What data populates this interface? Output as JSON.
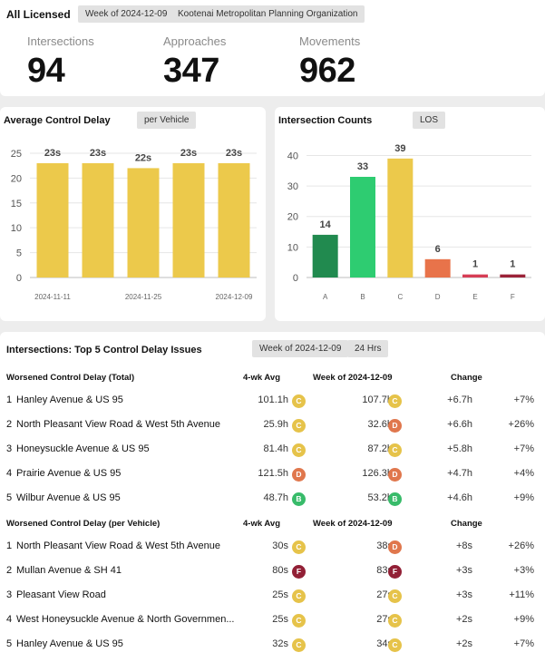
{
  "header": {
    "title": "All Licensed",
    "week_chip": "Week of 2024-12-09",
    "org_chip": "Kootenai Metropolitan Planning Organization"
  },
  "stats": [
    {
      "label": "Intersections",
      "value": "94"
    },
    {
      "label": "Approaches",
      "value": "347"
    },
    {
      "label": "Movements",
      "value": "962"
    }
  ],
  "colors": {
    "yellow": "#ecc94b",
    "green_dark": "#218a4f",
    "green": "#2ecc71",
    "orange": "#e8734a",
    "red": "#d63d55",
    "maroon": "#9b2338",
    "badge_C": "#e6c34a",
    "badge_D": "#e0774d",
    "badge_B": "#38bb6a",
    "badge_F": "#922036"
  },
  "delay_chart": {
    "title": "Average Control Delay",
    "chip": "per Vehicle"
  },
  "counts_chart": {
    "title": "Intersection Counts",
    "chip": "LOS"
  },
  "chart_data": [
    {
      "type": "bar",
      "title": "Average Control Delay",
      "categories": [
        "",
        "",
        "",
        "",
        ""
      ],
      "x_tick_labels": [
        "2024-11-11",
        "2024-11-25",
        "2024-12-09"
      ],
      "values": [
        23,
        23,
        22,
        23,
        23
      ],
      "data_labels": [
        "23s",
        "23s",
        "22s",
        "23s",
        "23s"
      ],
      "yticks": [
        "0",
        "5",
        "10",
        "15",
        "20",
        "25"
      ],
      "ylim": [
        0,
        27
      ],
      "grid": true
    },
    {
      "type": "bar",
      "title": "Intersection Counts",
      "categories": [
        "A",
        "B",
        "C",
        "D",
        "E",
        "F"
      ],
      "values": [
        14,
        33,
        39,
        6,
        1,
        1
      ],
      "data_labels": [
        "14",
        "33",
        "39",
        "6",
        "1",
        "1"
      ],
      "bar_colors": [
        "#218a4f",
        "#2ecc71",
        "#ecc94b",
        "#e8734a",
        "#d63d55",
        "#9b2338"
      ],
      "yticks": [
        "0",
        "10",
        "20",
        "30",
        "40"
      ],
      "ylim": [
        0,
        44
      ],
      "grid": true
    }
  ],
  "table": {
    "title": "Intersections: Top 5 Control Delay Issues",
    "week_chip": "Week of 2024-12-09",
    "hours_chip": "24 Hrs",
    "sections": [
      {
        "heading": "Worsened Control Delay (Total)",
        "col_avg": "4-wk Avg",
        "col_week": "Week of 2024-12-09",
        "col_change": "Change",
        "rows": [
          {
            "n": "1",
            "name": "Hanley Avenue & US 95",
            "avg": "101.1h",
            "avg_los": "C",
            "week": "107.7h",
            "week_los": "C",
            "change": "+6.7h",
            "pct": "+7%"
          },
          {
            "n": "2",
            "name": "North Pleasant View Road & West 5th Avenue",
            "avg": "25.9h",
            "avg_los": "C",
            "week": "32.6h",
            "week_los": "D",
            "change": "+6.6h",
            "pct": "+26%"
          },
          {
            "n": "3",
            "name": "Honeysuckle Avenue & US 95",
            "avg": "81.4h",
            "avg_los": "C",
            "week": "87.2h",
            "week_los": "C",
            "change": "+5.8h",
            "pct": "+7%"
          },
          {
            "n": "4",
            "name": "Prairie Avenue & US 95",
            "avg": "121.5h",
            "avg_los": "D",
            "week": "126.3h",
            "week_los": "D",
            "change": "+4.7h",
            "pct": "+4%"
          },
          {
            "n": "5",
            "name": "Wilbur Avenue & US 95",
            "avg": "48.7h",
            "avg_los": "B",
            "week": "53.2h",
            "week_los": "B",
            "change": "+4.6h",
            "pct": "+9%"
          }
        ]
      },
      {
        "heading": "Worsened Control Delay (per Vehicle)",
        "col_avg": "4-wk Avg",
        "col_week": "Week of 2024-12-09",
        "col_change": "Change",
        "rows": [
          {
            "n": "1",
            "name": "North Pleasant View Road & West 5th Avenue",
            "avg": "30s",
            "avg_los": "C",
            "week": "38s",
            "week_los": "D",
            "change": "+8s",
            "pct": "+26%"
          },
          {
            "n": "2",
            "name": "Mullan Avenue & SH 41",
            "avg": "80s",
            "avg_los": "F",
            "week": "83s",
            "week_los": "F",
            "change": "+3s",
            "pct": "+3%"
          },
          {
            "n": "3",
            "name": "Pleasant View Road",
            "avg": "25s",
            "avg_los": "C",
            "week": "27s",
            "week_los": "C",
            "change": "+3s",
            "pct": "+11%"
          },
          {
            "n": "4",
            "name": "West Honeysuckle Avenue & North Governmen...",
            "avg": "25s",
            "avg_los": "C",
            "week": "27s",
            "week_los": "C",
            "change": "+2s",
            "pct": "+9%"
          },
          {
            "n": "5",
            "name": "Hanley Avenue & US 95",
            "avg": "32s",
            "avg_los": "C",
            "week": "34s",
            "week_los": "C",
            "change": "+2s",
            "pct": "+7%"
          }
        ]
      }
    ]
  }
}
